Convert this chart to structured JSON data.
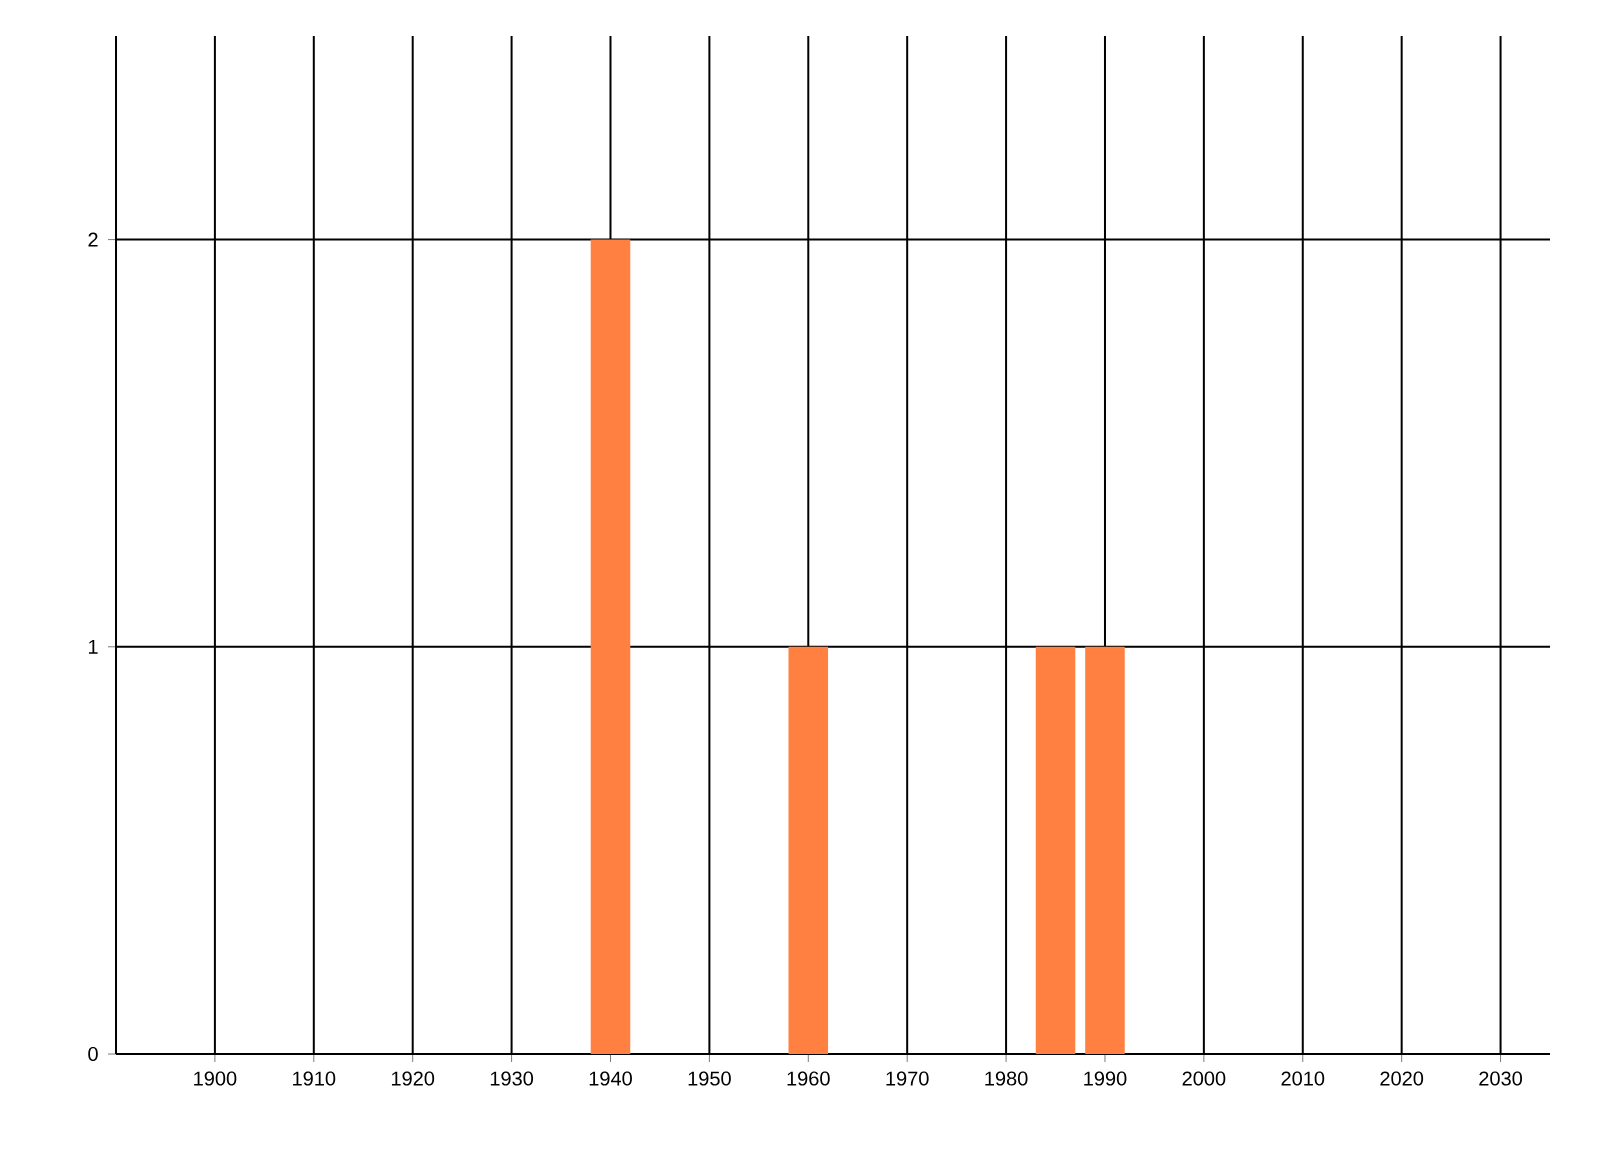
{
  "chart_data": {
    "type": "bar",
    "x": [
      1940,
      1960,
      1985,
      1990
    ],
    "values": [
      2,
      1,
      1,
      1
    ],
    "color": "#ff8040",
    "xlim": [
      1890,
      2035
    ],
    "xticks": [
      1900,
      1910,
      1920,
      1930,
      1940,
      1950,
      1960,
      1970,
      1980,
      1990,
      2000,
      2010,
      2020,
      2030
    ],
    "ylim": [
      0,
      2.5
    ],
    "yticks": [
      0,
      1,
      2
    ],
    "grid": true
  }
}
